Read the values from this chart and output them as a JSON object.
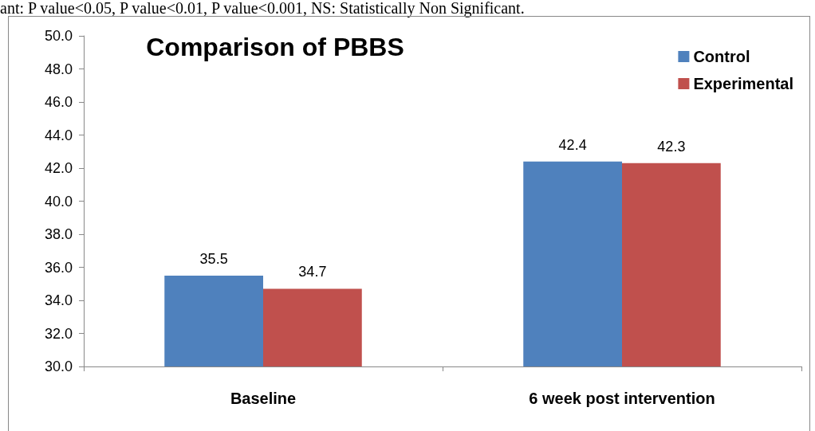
{
  "chart_data": {
    "type": "bar",
    "title": "Comparison of PBBS",
    "categories": [
      "Baseline",
      "6 week post intervention"
    ],
    "series": [
      {
        "name": "Control",
        "color": "#4f81bd",
        "values": [
          35.5,
          42.4
        ]
      },
      {
        "name": "Experimental",
        "color": "#c0504d",
        "values": [
          34.7,
          42.3
        ]
      }
    ],
    "ylim": [
      30,
      50
    ],
    "yticks": [
      "30.0",
      "32.0",
      "34.0",
      "36.0",
      "38.0",
      "40.0",
      "42.0",
      "44.0",
      "46.0",
      "48.0",
      "50.0"
    ],
    "data_labels": true,
    "grid": false,
    "legend": "top right",
    "annotations": [
      "ant: P value<0.05, P value<0.01, P value<0.001, NS: Statistically Non Significant."
    ]
  }
}
